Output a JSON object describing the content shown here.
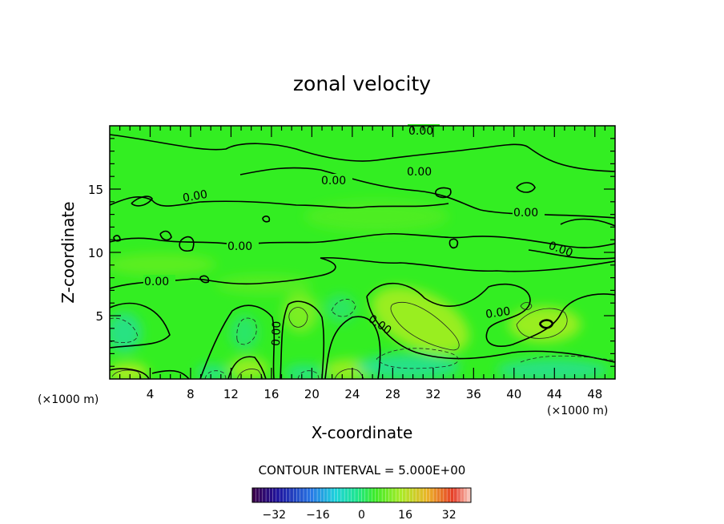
{
  "chart_data": {
    "type": "heatmap",
    "title": "zonal velocity",
    "xlabel": "X-coordinate",
    "ylabel": "Z-coordinate",
    "x_units": "(×1000 m)",
    "x_range": [
      0,
      50
    ],
    "y_range": [
      0,
      20
    ],
    "x_ticks": [
      "4",
      "8",
      "12",
      "16",
      "20",
      "24",
      "28",
      "32",
      "36",
      "40",
      "44",
      "48"
    ],
    "y_ticks": [
      "5",
      "10",
      "15"
    ],
    "contour_labels": [
      "0.00",
      "0.00",
      "0.00",
      "0.00",
      "0.00",
      "0.00",
      "0.00",
      "0.00",
      "0.00",
      "0.00",
      "0.00"
    ],
    "contour_interval_text": "CONTOUR INTERVAL = 5.000E+00",
    "colorbar": {
      "ticks": [
        "-32",
        "-16",
        "0",
        "16",
        "32"
      ],
      "range": [
        -40,
        40
      ],
      "levels": 64
    },
    "colors": {
      "field_base": "#33ee22",
      "positive": "#aaee22",
      "negative": "#22ddaa"
    }
  }
}
